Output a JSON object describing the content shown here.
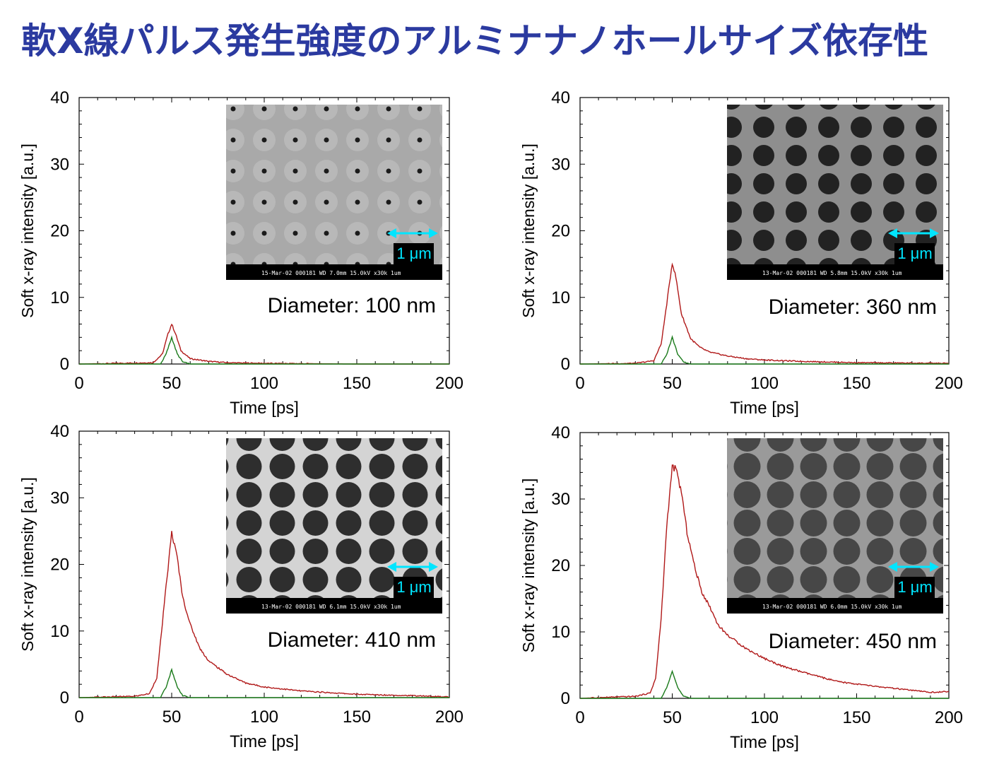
{
  "title": "軟X線パルス発生強度のアルミナナノホールサイズ依存性",
  "colors": {
    "title": "#2b3aa0",
    "red_series": "#b01818",
    "green_series": "#1a7a1a",
    "scale_arrow": "#00e5ff",
    "sem_bar": "#000000"
  },
  "chart_data": [
    {
      "type": "line",
      "xlabel": "Time [ps]",
      "ylabel": "Soft x-ray intensity [a.u.]",
      "xlim": [
        0,
        200
      ],
      "ylim": [
        0,
        40
      ],
      "x_ticks": [
        "0",
        "50",
        "100",
        "150",
        "200"
      ],
      "y_ticks": [
        "0",
        "10",
        "20",
        "30",
        "40"
      ],
      "annotation": "Diameter:  100 nm",
      "inset": {
        "scale_label": "1 μm",
        "bar_text": "15-Mar-02      000181  WD 7.0mm  15.0kV  x30k      1um",
        "image": "sem-sparse-small-holes"
      },
      "series": [
        {
          "color": "red",
          "peak_x": 50,
          "peak_y": 6.0,
          "tail": [
            [
              0,
              0
            ],
            [
              40,
              0.2
            ],
            [
              45,
              1.5
            ],
            [
              48,
              4.5
            ],
            [
              50,
              6.0
            ],
            [
              52,
              4.6
            ],
            [
              55,
              2.0
            ],
            [
              60,
              0.8
            ],
            [
              70,
              0.4
            ],
            [
              80,
              0.2
            ],
            [
              100,
              0.1
            ],
            [
              150,
              0
            ],
            [
              200,
              0
            ]
          ]
        },
        {
          "color": "green",
          "peak_x": 50,
          "peak_y": 4.0,
          "tail": [
            [
              0,
              0
            ],
            [
              44,
              0
            ],
            [
              47,
              1.5
            ],
            [
              50,
              4.0
            ],
            [
              53,
              1.5
            ],
            [
              56,
              0.3
            ],
            [
              60,
              0
            ],
            [
              200,
              0
            ]
          ]
        }
      ]
    },
    {
      "type": "line",
      "xlabel": "Time [ps]",
      "ylabel": "Soft x-ray intensity [a.u.]",
      "xlim": [
        0,
        200
      ],
      "ylim": [
        0,
        40
      ],
      "x_ticks": [
        "0",
        "50",
        "100",
        "150",
        "200"
      ],
      "y_ticks": [
        "0",
        "10",
        "20",
        "30",
        "40"
      ],
      "annotation": "Diameter:  360 nm",
      "inset": {
        "scale_label": "1 μm",
        "bar_text": "13-Mar-02      000181  WD 5.8mm  15.0kV  x30k      1um",
        "image": "sem-medium-holes"
      },
      "series": [
        {
          "color": "red",
          "peak_x": 50,
          "peak_y": 15.2,
          "tail": [
            [
              0,
              0
            ],
            [
              30,
              0.1
            ],
            [
              40,
              0.5
            ],
            [
              44,
              3.0
            ],
            [
              47,
              9.0
            ],
            [
              50,
              15.2
            ],
            [
              52,
              13.0
            ],
            [
              55,
              7.5
            ],
            [
              60,
              3.8
            ],
            [
              65,
              2.5
            ],
            [
              70,
              1.8
            ],
            [
              80,
              1.2
            ],
            [
              90,
              0.8
            ],
            [
              100,
              0.6
            ],
            [
              120,
              0.4
            ],
            [
              150,
              0.2
            ],
            [
              200,
              0.1
            ]
          ]
        },
        {
          "color": "green",
          "peak_x": 50,
          "peak_y": 4.0,
          "tail": [
            [
              0,
              0
            ],
            [
              44,
              0
            ],
            [
              47,
              1.5
            ],
            [
              50,
              4.0
            ],
            [
              53,
              1.5
            ],
            [
              56,
              0.3
            ],
            [
              60,
              0
            ],
            [
              200,
              0
            ]
          ]
        }
      ]
    },
    {
      "type": "line",
      "xlabel": "Time [ps]",
      "ylabel": "Soft x-ray intensity [a.u.]",
      "xlim": [
        0,
        200
      ],
      "ylim": [
        0,
        40
      ],
      "x_ticks": [
        "0",
        "50",
        "100",
        "150",
        "200"
      ],
      "y_ticks": [
        "0",
        "10",
        "20",
        "30",
        "40"
      ],
      "annotation": "Diameter:  410 nm",
      "inset": {
        "scale_label": "1 μm",
        "bar_text": "13-Mar-02      000181  WD 6.1mm  15.0kV  x30k      1um",
        "image": "sem-large-holes"
      },
      "series": [
        {
          "color": "red",
          "peak_x": 50,
          "peak_y": 24.8,
          "tail": [
            [
              0,
              0
            ],
            [
              30,
              0.2
            ],
            [
              38,
              0.6
            ],
            [
              42,
              3.0
            ],
            [
              46,
              14.0
            ],
            [
              50,
              24.8
            ],
            [
              53,
              21.0
            ],
            [
              56,
              15.0
            ],
            [
              60,
              11.0
            ],
            [
              65,
              7.5
            ],
            [
              70,
              5.5
            ],
            [
              80,
              3.5
            ],
            [
              90,
              2.2
            ],
            [
              100,
              1.6
            ],
            [
              120,
              1.0
            ],
            [
              150,
              0.5
            ],
            [
              180,
              0.3
            ],
            [
              200,
              0.1
            ]
          ]
        },
        {
          "color": "green",
          "peak_x": 50,
          "peak_y": 4.2,
          "tail": [
            [
              0,
              0
            ],
            [
              44,
              0
            ],
            [
              47,
              1.6
            ],
            [
              50,
              4.2
            ],
            [
              53,
              1.6
            ],
            [
              56,
              0.3
            ],
            [
              60,
              0
            ],
            [
              200,
              0
            ]
          ]
        }
      ]
    },
    {
      "type": "line",
      "xlabel": "Time [ps]",
      "ylabel": "Soft x-ray intensity [a.u.]",
      "xlim": [
        0,
        200
      ],
      "ylim": [
        0,
        40
      ],
      "x_ticks": [
        "0",
        "50",
        "100",
        "150",
        "200"
      ],
      "y_ticks": [
        "0",
        "10",
        "20",
        "30",
        "40"
      ],
      "annotation": "Diameter:  450 nm",
      "inset": {
        "scale_label": "1 μm",
        "bar_text": "13-Mar-02      000181  WD 6.0mm  15.0kV  x30k      1um",
        "image": "sem-large-holes-thin-walls"
      },
      "series": [
        {
          "color": "red",
          "peak_x": 50,
          "peak_y": 35.0,
          "tail": [
            [
              0,
              0
            ],
            [
              30,
              0.3
            ],
            [
              38,
              0.8
            ],
            [
              41,
              3.0
            ],
            [
              44,
              12.0
            ],
            [
              47,
              26.0
            ],
            [
              50,
              34.8
            ],
            [
              52,
              34.5
            ],
            [
              55,
              31.0
            ],
            [
              58,
              25.0
            ],
            [
              62,
              20.0
            ],
            [
              66,
              16.0
            ],
            [
              70,
              14.0
            ],
            [
              75,
              11.0
            ],
            [
              80,
              9.5
            ],
            [
              90,
              7.5
            ],
            [
              100,
              6.0
            ],
            [
              110,
              4.8
            ],
            [
              125,
              3.6
            ],
            [
              140,
              2.5
            ],
            [
              160,
              1.8
            ],
            [
              180,
              1.2
            ],
            [
              190,
              0.9
            ],
            [
              200,
              1.0
            ]
          ]
        },
        {
          "color": "green",
          "peak_x": 50,
          "peak_y": 4.2,
          "tail": [
            [
              0,
              0
            ],
            [
              44,
              0
            ],
            [
              47,
              1.6
            ],
            [
              50,
              4.2
            ],
            [
              53,
              1.6
            ],
            [
              56,
              0.3
            ],
            [
              60,
              0
            ],
            [
              200,
              0
            ]
          ]
        }
      ]
    }
  ]
}
